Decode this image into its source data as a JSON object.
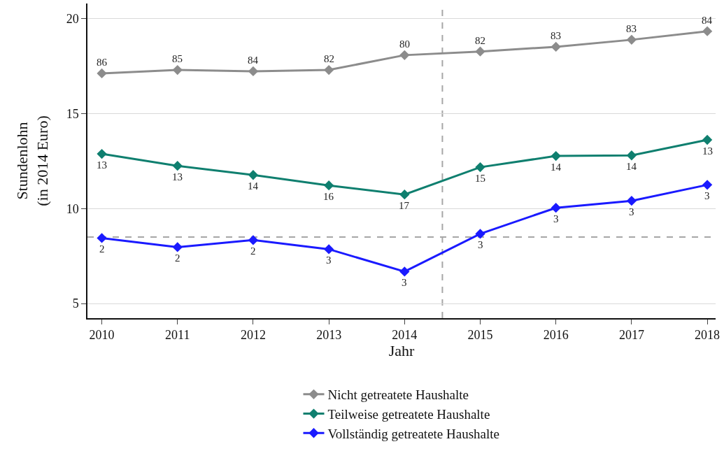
{
  "chart_data": {
    "type": "line",
    "xlabel": "Jahr",
    "ylabel": "Stundenlohn\n(in 2014 Euro)",
    "x": [
      2010,
      2011,
      2012,
      2013,
      2014,
      2015,
      2016,
      2017,
      2018
    ],
    "xlim": [
      2009.81,
      2018.11
    ],
    "xticks": [
      2010,
      2011,
      2012,
      2013,
      2014,
      2015,
      2016,
      2017,
      2018
    ],
    "ylim": [
      4.23,
      20.8
    ],
    "yticks": [
      5,
      10,
      15,
      20
    ],
    "grid": "y",
    "legend": "bottom",
    "marker": "diamond",
    "line_style": "solid",
    "series": [
      {
        "name": "Nicht getreatete Haushalte",
        "color": "#8c8c8c",
        "values": [
          17.12,
          17.3,
          17.23,
          17.3,
          18.08,
          18.27,
          18.52,
          18.89,
          19.34
        ]
      },
      {
        "name": "Teilweise getreatete Haushalte",
        "color": "#0f7f6f",
        "values": [
          12.88,
          12.25,
          11.77,
          11.22,
          10.74,
          12.18,
          12.77,
          12.8,
          13.62
        ]
      },
      {
        "name": "Vollständig getreatete Haushalte",
        "color": "#1a1aff",
        "values": [
          8.45,
          7.97,
          8.34,
          7.86,
          6.68,
          8.67,
          10.04,
          10.41,
          11.25
        ]
      }
    ],
    "annotations": [
      {
        "text": "86",
        "x": 2010,
        "y": 17.12
      },
      {
        "text": "85",
        "x": 2011,
        "y": 17.3
      },
      {
        "text": "84",
        "x": 2012,
        "y": 17.23
      },
      {
        "text": "82",
        "x": 2013,
        "y": 17.3
      },
      {
        "text": "80",
        "x": 2014,
        "y": 18.08
      },
      {
        "text": "82",
        "x": 2015,
        "y": 18.27
      },
      {
        "text": "83",
        "x": 2016,
        "y": 18.52
      },
      {
        "text": "83",
        "x": 2017,
        "y": 18.89
      },
      {
        "text": "84",
        "x": 2018,
        "y": 19.34
      },
      {
        "text": "13",
        "x": 2010,
        "y": 12.88
      },
      {
        "text": "13",
        "x": 2011,
        "y": 12.25
      },
      {
        "text": "14",
        "x": 2012,
        "y": 11.77
      },
      {
        "text": "16",
        "x": 2013,
        "y": 11.22
      },
      {
        "text": "17",
        "x": 2014,
        "y": 10.74
      },
      {
        "text": "15",
        "x": 2015,
        "y": 12.18
      },
      {
        "text": "14",
        "x": 2016,
        "y": 12.77
      },
      {
        "text": "14",
        "x": 2017,
        "y": 12.8
      },
      {
        "text": "13",
        "x": 2018,
        "y": 13.62
      },
      {
        "text": "2",
        "x": 2010,
        "y": 8.45
      },
      {
        "text": "2",
        "x": 2011,
        "y": 7.97
      },
      {
        "text": "2",
        "x": 2012,
        "y": 8.34
      },
      {
        "text": "3",
        "x": 2013,
        "y": 7.86
      },
      {
        "text": "3",
        "x": 2014,
        "y": 6.68
      },
      {
        "text": "3",
        "x": 2015,
        "y": 8.67
      },
      {
        "text": "3",
        "x": 2016,
        "y": 10.04
      },
      {
        "text": "3",
        "x": 2017,
        "y": 10.41
      },
      {
        "text": "3",
        "x": 2018,
        "y": 11.25
      }
    ],
    "ref_lines": [
      {
        "axis": "x",
        "value": 2014.5,
        "color": "#a6a6a6",
        "line_style": "dashed"
      },
      {
        "axis": "y",
        "value": 8.5,
        "color": "#a6a6a6",
        "line_style": "dashed"
      }
    ]
  }
}
